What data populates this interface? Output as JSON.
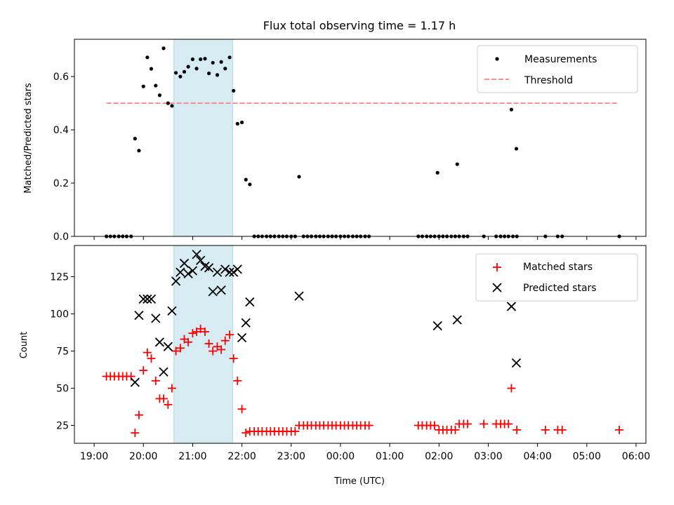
{
  "chart_data": [
    {
      "type": "scatter",
      "title": "Flux total observing time = 1.17 h",
      "xlabel": "",
      "ylabel": "Matched/Predicted stars",
      "ylim": [
        0,
        0.74
      ],
      "yticks": [
        0.0,
        0.2,
        0.4,
        0.6
      ],
      "ytick_labels": [
        "0.0",
        "0.2",
        "0.4",
        "0.6"
      ],
      "legend_position": "top-right",
      "highlight_span_hours": [
        20.62,
        21.81
      ],
      "threshold": {
        "name": "Threshold",
        "y": 0.5,
        "x_start_hours": 19.25,
        "x_end_hours": 29.63,
        "color": "#ff7f7f"
      },
      "series": [
        {
          "name": "Measurements",
          "marker": "dot",
          "color": "#000000",
          "x_hours": [
            19.25,
            19.33,
            19.41,
            19.5,
            19.58,
            19.66,
            19.75,
            19.83,
            19.91,
            20.0,
            20.08,
            20.16,
            20.25,
            20.33,
            20.41,
            20.5,
            20.58,
            20.66,
            20.75,
            20.83,
            20.91,
            21.0,
            21.08,
            21.16,
            21.25,
            21.33,
            21.41,
            21.5,
            21.58,
            21.66,
            21.75,
            21.83,
            21.91,
            22.0,
            22.08,
            22.16,
            22.25,
            22.33,
            22.41,
            22.5,
            22.58,
            22.66,
            22.75,
            22.83,
            22.91,
            23.0,
            23.08,
            23.16,
            23.25,
            23.33,
            23.41,
            23.5,
            23.58,
            23.66,
            23.75,
            23.83,
            23.91,
            24.0,
            24.08,
            24.16,
            24.25,
            24.33,
            24.41,
            24.5,
            24.58,
            25.58,
            25.66,
            25.75,
            25.83,
            25.91,
            26.0,
            26.08,
            26.16,
            26.25,
            26.33,
            26.41,
            26.5,
            26.58,
            26.91,
            27.16,
            27.25,
            27.33,
            27.41,
            27.5,
            27.58,
            28.16,
            28.41,
            28.5,
            29.66
          ],
          "y": [
            0.0,
            0.0,
            0.0,
            0.0,
            0.0,
            0.0,
            0.0,
            0.367,
            0.322,
            0.563,
            0.672,
            0.629,
            0.566,
            0.53,
            0.706,
            0.5,
            0.49,
            0.614,
            0.6,
            0.618,
            0.637,
            0.665,
            0.63,
            0.665,
            0.667,
            0.612,
            0.652,
            0.606,
            0.655,
            0.63,
            0.672,
            0.547,
            0.423,
            0.428,
            0.213,
            0.195,
            0.0,
            0.0,
            0.0,
            0.0,
            0.0,
            0.0,
            0.0,
            0.0,
            0.0,
            0.0,
            0.0,
            0.224,
            0.0,
            0.0,
            0.0,
            0.0,
            0.0,
            0.0,
            0.0,
            0.0,
            0.0,
            0.0,
            0.0,
            0.0,
            0.0,
            0.0,
            0.0,
            0.0,
            0.0,
            0.0,
            0.0,
            0.0,
            0.0,
            0.0,
            0.0,
            0.0,
            0.0,
            0.0,
            0.0,
            0.0,
            0.0,
            0.0,
            0.0,
            0.0,
            0.0,
            0.0,
            0.0,
            0.0,
            0.0,
            0.0,
            0.0,
            0.0,
            0.0
          ],
          "extra_points": [
            [
              25.97,
              0.239
            ],
            [
              26.37,
              0.271
            ],
            [
              27.47,
              0.476
            ],
            [
              27.57,
              0.329
            ]
          ]
        }
      ]
    },
    {
      "type": "scatter",
      "xlabel": "Time (UTC)",
      "ylabel": "Count",
      "ylim": [
        13,
        146
      ],
      "yticks": [
        25,
        50,
        75,
        100,
        125
      ],
      "ytick_labels": [
        "25",
        "50",
        "75",
        "100",
        "125"
      ],
      "xlim_hours": [
        18.6,
        30.2
      ],
      "xticks_hours": [
        19,
        20,
        21,
        22,
        23,
        24,
        25,
        26,
        27,
        28,
        29,
        30
      ],
      "xtick_labels": [
        "19:00",
        "20:00",
        "21:00",
        "22:00",
        "23:00",
        "00:00",
        "01:00",
        "02:00",
        "03:00",
        "04:00",
        "05:00",
        "06:00"
      ],
      "legend_position": "top-right",
      "highlight_span_hours": [
        20.62,
        21.81
      ],
      "series": [
        {
          "name": "Matched stars",
          "marker": "plus",
          "color": "#ff0000",
          "points": [
            [
              19.25,
              58
            ],
            [
              19.33,
              58
            ],
            [
              19.41,
              58
            ],
            [
              19.5,
              58
            ],
            [
              19.58,
              58
            ],
            [
              19.66,
              58
            ],
            [
              19.75,
              58
            ],
            [
              19.83,
              20
            ],
            [
              19.91,
              32
            ],
            [
              20.0,
              62
            ],
            [
              20.08,
              74
            ],
            [
              20.16,
              70
            ],
            [
              20.25,
              55
            ],
            [
              20.33,
              43
            ],
            [
              20.41,
              43
            ],
            [
              20.5,
              39
            ],
            [
              20.58,
              50
            ],
            [
              20.66,
              75
            ],
            [
              20.75,
              77
            ],
            [
              20.83,
              83
            ],
            [
              20.91,
              81
            ],
            [
              21.0,
              87
            ],
            [
              21.08,
              88
            ],
            [
              21.16,
              90
            ],
            [
              21.25,
              88
            ],
            [
              21.33,
              80
            ],
            [
              21.41,
              75
            ],
            [
              21.5,
              78
            ],
            [
              21.58,
              76
            ],
            [
              21.66,
              82
            ],
            [
              21.75,
              86
            ],
            [
              21.83,
              70
            ],
            [
              21.91,
              55
            ],
            [
              22.0,
              36
            ],
            [
              22.08,
              20
            ],
            [
              22.16,
              21
            ],
            [
              22.25,
              21
            ],
            [
              22.33,
              21
            ],
            [
              22.41,
              21
            ],
            [
              22.5,
              21
            ],
            [
              22.58,
              21
            ],
            [
              22.66,
              21
            ],
            [
              22.75,
              21
            ],
            [
              22.83,
              21
            ],
            [
              22.91,
              21
            ],
            [
              23.0,
              21
            ],
            [
              23.08,
              21
            ],
            [
              23.16,
              25
            ],
            [
              23.25,
              25
            ],
            [
              23.33,
              25
            ],
            [
              23.41,
              25
            ],
            [
              23.5,
              25
            ],
            [
              23.58,
              25
            ],
            [
              23.66,
              25
            ],
            [
              23.75,
              25
            ],
            [
              23.83,
              25
            ],
            [
              23.91,
              25
            ],
            [
              24.0,
              25
            ],
            [
              24.08,
              25
            ],
            [
              24.16,
              25
            ],
            [
              24.25,
              25
            ],
            [
              24.33,
              25
            ],
            [
              24.41,
              25
            ],
            [
              24.5,
              25
            ],
            [
              24.58,
              25
            ],
            [
              25.58,
              25
            ],
            [
              25.66,
              25
            ],
            [
              25.75,
              25
            ],
            [
              25.83,
              25
            ],
            [
              25.91,
              25
            ],
            [
              26.0,
              22
            ],
            [
              26.08,
              22
            ],
            [
              26.16,
              22
            ],
            [
              26.25,
              22
            ],
            [
              26.33,
              22
            ],
            [
              26.41,
              26
            ],
            [
              26.5,
              26
            ],
            [
              26.58,
              26
            ],
            [
              26.91,
              26
            ],
            [
              27.16,
              26
            ],
            [
              27.25,
              26
            ],
            [
              27.33,
              26
            ],
            [
              27.41,
              26
            ],
            [
              27.47,
              50
            ],
            [
              27.58,
              22
            ],
            [
              28.16,
              22
            ],
            [
              28.41,
              22
            ],
            [
              28.5,
              22
            ],
            [
              29.66,
              22
            ]
          ]
        },
        {
          "name": "Predicted stars",
          "marker": "x",
          "color": "#000000",
          "points": [
            [
              19.83,
              54
            ],
            [
              19.91,
              99
            ],
            [
              20.0,
              110
            ],
            [
              20.08,
              110
            ],
            [
              20.16,
              110
            ],
            [
              20.25,
              97
            ],
            [
              20.33,
              81
            ],
            [
              20.41,
              61
            ],
            [
              20.5,
              78
            ],
            [
              20.58,
              102
            ],
            [
              20.66,
              122
            ],
            [
              20.75,
              128
            ],
            [
              20.83,
              134
            ],
            [
              20.91,
              127
            ],
            [
              21.0,
              129
            ],
            [
              21.08,
              140
            ],
            [
              21.16,
              136
            ],
            [
              21.25,
              132
            ],
            [
              21.33,
              131
            ],
            [
              21.41,
              115
            ],
            [
              21.5,
              128
            ],
            [
              21.58,
              116
            ],
            [
              21.66,
              130
            ],
            [
              21.75,
              128
            ],
            [
              21.83,
              128
            ],
            [
              21.91,
              130
            ],
            [
              22.0,
              84
            ],
            [
              22.08,
              94
            ],
            [
              22.16,
              108
            ],
            [
              23.16,
              112
            ],
            [
              25.97,
              92
            ],
            [
              26.37,
              96
            ],
            [
              27.47,
              105
            ],
            [
              27.57,
              67
            ]
          ]
        }
      ]
    }
  ]
}
